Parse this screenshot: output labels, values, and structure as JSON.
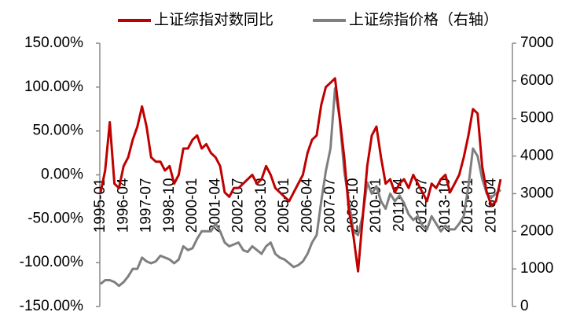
{
  "chart_data": {
    "type": "line",
    "categories": [
      "1995-01",
      null,
      null,
      null,
      null,
      "1996-04",
      null,
      null,
      null,
      null,
      "1997-07",
      null,
      null,
      null,
      null,
      "1998-10",
      null,
      null,
      null,
      null,
      "2000-01",
      null,
      null,
      null,
      null,
      "2001-04",
      null,
      null,
      null,
      null,
      "2002-07",
      null,
      null,
      null,
      null,
      "2003-10",
      null,
      null,
      null,
      null,
      "2005-01",
      null,
      null,
      null,
      null,
      "2006-04",
      null,
      null,
      null,
      null,
      "2007-07",
      null,
      null,
      null,
      null,
      "2008-10",
      null,
      null,
      null,
      null,
      "2010-01",
      null,
      null,
      null,
      null,
      "2011-04",
      null,
      null,
      null,
      null,
      "2012-07",
      null,
      null,
      null,
      null,
      "2013-10",
      null,
      null,
      null,
      null,
      "2015-01",
      null,
      null,
      null,
      null,
      "2016-04",
      null,
      null
    ],
    "series": [
      {
        "name": "上证综指对数同比",
        "color": "#c00000",
        "values": [
          -20,
          5,
          60,
          -10,
          -15,
          10,
          20,
          40,
          55,
          78,
          55,
          20,
          15,
          15,
          5,
          10,
          -10,
          0,
          30,
          30,
          40,
          45,
          30,
          35,
          25,
          20,
          10,
          -20,
          -25,
          -15,
          -15,
          -10,
          -5,
          0,
          -10,
          -5,
          10,
          0,
          -15,
          -20,
          -25,
          -30,
          -20,
          -10,
          0,
          25,
          40,
          45,
          80,
          100,
          105,
          110,
          65,
          20,
          -40,
          -70,
          -110,
          -50,
          10,
          45,
          55,
          20,
          -10,
          -5,
          -20,
          -10,
          -5,
          -15,
          0,
          -10,
          -20,
          -30,
          -10,
          -15,
          -5,
          0,
          -20,
          -10,
          0,
          20,
          45,
          75,
          70,
          10,
          -20,
          -35,
          -30,
          -5
        ]
      },
      {
        "name": "上证综指价格（右轴）",
        "color": "#7f7f7f",
        "axis": "y2",
        "values": [
          600,
          700,
          700,
          650,
          550,
          650,
          800,
          1000,
          1000,
          1300,
          1200,
          1150,
          1200,
          1350,
          1300,
          1250,
          1150,
          1250,
          1600,
          1500,
          1550,
          1800,
          2000,
          2000,
          2000,
          2200,
          2000,
          1700,
          1600,
          1650,
          1700,
          1500,
          1450,
          1600,
          1500,
          1400,
          1600,
          1700,
          1400,
          1300,
          1250,
          1150,
          1050,
          1100,
          1200,
          1400,
          1700,
          1900,
          2800,
          3600,
          4200,
          5800,
          5000,
          3600,
          2800,
          2000,
          1900,
          2400,
          3300,
          3000,
          3200,
          2800,
          2600,
          3000,
          2800,
          2950,
          2750,
          2450,
          2300,
          2400,
          2150,
          2050,
          2400,
          2200,
          2000,
          2150,
          2050,
          2050,
          2200,
          2400,
          3200,
          4200,
          4000,
          3400,
          3000,
          2900,
          3000,
          3100
        ]
      }
    ],
    "ylim": [
      -150,
      150
    ],
    "yticks": [
      {
        "value": -150,
        "label": "-150.00%"
      },
      {
        "value": -100,
        "label": "-100.00%"
      },
      {
        "value": -50,
        "label": "-50.00%"
      },
      {
        "value": 0,
        "label": "0.00%"
      },
      {
        "value": 50,
        "label": "50.00%"
      },
      {
        "value": 100,
        "label": "100.00%"
      },
      {
        "value": 150,
        "label": "150.00%"
      }
    ],
    "y2lim": [
      0,
      7000
    ],
    "y2ticks": [
      0,
      1000,
      2000,
      3000,
      4000,
      5000,
      6000,
      7000
    ],
    "grid": false
  }
}
